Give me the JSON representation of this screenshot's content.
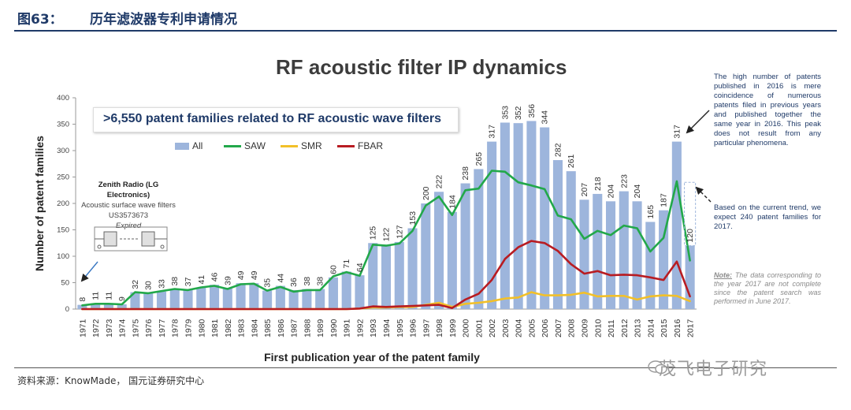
{
  "header": {
    "figure_label": "图63：",
    "caption": "历年滤波器专利申请情况"
  },
  "footer": {
    "source": "资料来源：KnowMade， 国元证券研究中心",
    "watermark": "茂飞电子研究"
  },
  "colors": {
    "header_blue": "#1f3a68",
    "bar": "#9db5dc",
    "saw": "#22a84a",
    "smr": "#f2c029",
    "fbar": "#b81c22",
    "note_text": "#1f3a68"
  },
  "annotations": {
    "headline": ">6,550 patent families related to RF acoustic wave filters",
    "callout_title": "Zenith Radio (LG Electronics)",
    "callout_line1": "Acoustic surface wave filters",
    "callout_line2": "US3573673",
    "callout_line3": "Expired",
    "note_peak": "The high number of patents published in 2016 is mere coincidence of numerous patents filed in previous years and published together the same year in 2016. This peak does not result from any particular phenomena.",
    "note_trend": "Based on the current trend, we expect 240 patent families for 2017.",
    "note_head": "Note:",
    "note_body": " The data corresponding to the year 2017 are not complete since the patent search was performed in June 2017."
  },
  "chart_data": {
    "type": "bar",
    "title": "RF acoustic filter IP dynamics",
    "xlabel": "First publication year of the patent family",
    "ylabel": "Number of patent families",
    "ylim": [
      0,
      400
    ],
    "yticks": [
      0,
      50,
      100,
      150,
      200,
      250,
      300,
      350,
      400
    ],
    "grid": false,
    "legend_position": "top",
    "categories": [
      "1971",
      "1972",
      "1973",
      "1974",
      "1975",
      "1976",
      "1977",
      "1978",
      "1979",
      "1980",
      "1981",
      "1982",
      "1983",
      "1984",
      "1985",
      "1986",
      "1987",
      "1988",
      "1989",
      "1990",
      "1991",
      "1992",
      "1993",
      "1994",
      "1995",
      "1996",
      "1997",
      "1998",
      "1999",
      "2000",
      "2001",
      "2002",
      "2003",
      "2004",
      "2005",
      "2006",
      "2007",
      "2008",
      "2009",
      "2010",
      "2011",
      "2012",
      "2013",
      "2014",
      "2015",
      "2016",
      "2017"
    ],
    "series": [
      {
        "name": "All",
        "kind": "bar",
        "values": [
          8,
          11,
          11,
          9,
          32,
          30,
          33,
          38,
          37,
          41,
          46,
          39,
          49,
          49,
          35,
          44,
          36,
          38,
          38,
          60,
          71,
          64,
          125,
          122,
          127,
          153,
          200,
          222,
          184,
          238,
          265,
          317,
          353,
          352,
          356,
          344,
          282,
          261,
          207,
          218,
          204,
          223,
          204,
          165,
          187,
          317,
          120
        ]
      },
      {
        "name": "SAW",
        "kind": "line",
        "values": [
          7,
          10,
          10,
          9,
          32,
          30,
          34,
          38,
          36,
          41,
          44,
          38,
          47,
          48,
          35,
          42,
          33,
          36,
          36,
          62,
          70,
          63,
          122,
          120,
          124,
          148,
          196,
          213,
          178,
          225,
          228,
          262,
          260,
          240,
          234,
          227,
          177,
          170,
          133,
          148,
          140,
          158,
          153,
          109,
          135,
          242,
          92
        ]
      },
      {
        "name": "SMR",
        "kind": "line",
        "values": [
          0,
          0,
          0,
          0,
          0,
          0,
          0,
          0,
          0,
          0,
          0,
          0,
          0,
          0,
          0,
          0,
          0,
          0,
          0,
          0,
          0,
          1,
          3,
          3,
          4,
          4,
          8,
          12,
          4,
          10,
          12,
          15,
          20,
          22,
          32,
          26,
          26,
          27,
          31,
          24,
          25,
          25,
          18,
          24,
          26,
          25,
          15
        ]
      },
      {
        "name": "FBAR",
        "kind": "line",
        "values": [
          0,
          0,
          0,
          0,
          0,
          0,
          0,
          0,
          0,
          0,
          0,
          0,
          0,
          0,
          0,
          0,
          0,
          0,
          0,
          0,
          0,
          1,
          5,
          4,
          5,
          6,
          7,
          8,
          2,
          18,
          29,
          55,
          95,
          117,
          129,
          125,
          110,
          85,
          67,
          72,
          64,
          65,
          64,
          60,
          55,
          90,
          24
        ]
      }
    ],
    "data_labels": [
      "8",
      "11",
      "11",
      "9",
      "32",
      "30",
      "33",
      "38",
      "37",
      "41",
      "46",
      "39",
      "49",
      "49",
      "35",
      "44",
      "36",
      "38",
      "38",
      "60",
      "71",
      "64",
      "125",
      "122",
      "127",
      "153",
      "200",
      "222",
      "184",
      "238",
      "265",
      "317",
      "353",
      "352",
      "356",
      "344",
      "282",
      "261",
      "207",
      "218",
      "204",
      "223",
      "204",
      "165",
      "187",
      "317",
      "120"
    ]
  }
}
